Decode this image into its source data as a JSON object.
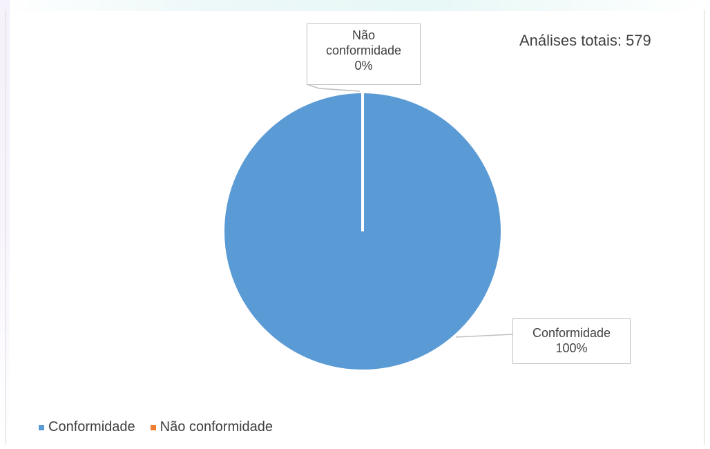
{
  "chart_data": {
    "type": "pie",
    "categories": [
      "Conformidade",
      "Não conformidade"
    ],
    "values": [
      579,
      0
    ],
    "percent_labels": [
      "100%",
      "0%"
    ],
    "colors": [
      "#5b9bd5",
      "#ed7d31"
    ],
    "annotation": "Análises totais: 579",
    "legend_position": "bottom-left"
  },
  "labels": {
    "nao_conformidade": {
      "line1": "Não",
      "line2": "conformidade",
      "percent": "0%"
    },
    "conformidade": {
      "line1": "Conformidade",
      "percent": "100%"
    }
  },
  "legend": {
    "items": [
      {
        "label": "Conformidade",
        "color": "#5b9bd5"
      },
      {
        "label": "Não conformidade",
        "color": "#ed7d31"
      }
    ]
  }
}
